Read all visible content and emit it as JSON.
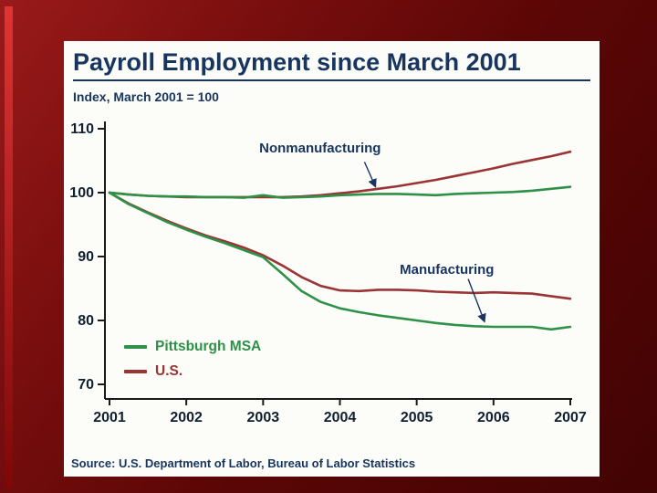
{
  "chart_data": {
    "type": "line",
    "title": "Payroll Employment since March 2001",
    "subtitle": "Index, March 2001 = 100",
    "source": "Source: U.S. Department of Labor, Bureau of Labor Statistics",
    "xlim": [
      2001,
      2007
    ],
    "ylim": [
      70,
      110
    ],
    "xticks": [
      2001,
      2002,
      2003,
      2004,
      2005,
      2006,
      2007
    ],
    "yticks": [
      110,
      100,
      90,
      80,
      70
    ],
    "grid": false,
    "legend_position": "inside-lower-left",
    "axis_color": "#1a1a1a",
    "tick_label_color": "#102030",
    "annotation_color": "#17355e",
    "x": [
      2001,
      2001.25,
      2001.5,
      2001.75,
      2002,
      2002.25,
      2002.5,
      2002.75,
      2003,
      2003.25,
      2003.5,
      2003.75,
      2004,
      2004.25,
      2004.5,
      2004.75,
      2005,
      2005.25,
      2005.5,
      2005.75,
      2006,
      2006.25,
      2006.5,
      2006.75,
      2007
    ],
    "series": [
      {
        "name": "U.S. Nonmanufacturing",
        "region": "U.S.",
        "group": "Nonmanufacturing",
        "color": "#9b3434",
        "values": [
          100,
          99.7,
          99.5,
          99.4,
          99.3,
          99.3,
          99.3,
          99.3,
          99.3,
          99.3,
          99.4,
          99.6,
          99.9,
          100.2,
          100.6,
          101.0,
          101.5,
          102.0,
          102.6,
          103.2,
          103.8,
          104.5,
          105.1,
          105.7,
          106.4
        ]
      },
      {
        "name": "U.S. Manufacturing",
        "region": "U.S.",
        "group": "Manufacturing",
        "color": "#9b3434",
        "values": [
          100,
          98.3,
          96.9,
          95.6,
          94.4,
          93.3,
          92.4,
          91.4,
          90.2,
          88.6,
          86.8,
          85.4,
          84.7,
          84.6,
          84.8,
          84.8,
          84.7,
          84.5,
          84.4,
          84.3,
          84.4,
          84.3,
          84.2,
          83.8,
          83.4
        ]
      },
      {
        "name": "Pittsburgh MSA Nonmanufacturing",
        "region": "Pittsburgh MSA",
        "group": "Nonmanufacturing",
        "color": "#2e9148",
        "values": [
          100,
          99.7,
          99.5,
          99.4,
          99.4,
          99.3,
          99.3,
          99.2,
          99.6,
          99.2,
          99.3,
          99.4,
          99.6,
          99.7,
          99.8,
          99.8,
          99.7,
          99.6,
          99.8,
          99.9,
          100.0,
          100.1,
          100.3,
          100.6,
          100.9
        ]
      },
      {
        "name": "Pittsburgh MSA Manufacturing",
        "region": "Pittsburgh MSA",
        "group": "Manufacturing",
        "color": "#2e9148",
        "values": [
          100,
          98.2,
          96.8,
          95.4,
          94.2,
          93.1,
          92.1,
          91.0,
          89.9,
          87.3,
          84.6,
          82.9,
          81.9,
          81.3,
          80.8,
          80.4,
          80.0,
          79.6,
          79.3,
          79.1,
          79.0,
          79.0,
          79.0,
          78.6,
          79.0
        ]
      }
    ],
    "legend": [
      {
        "label": "Pittsburgh MSA",
        "color": "#2e9148"
      },
      {
        "label": "U.S.",
        "color": "#9b3434"
      }
    ],
    "annotations": [
      {
        "text": "Nonmanufacturing",
        "x": 2002.95,
        "y": 106.9,
        "arrow": {
          "x1": 2004.32,
          "y1": 104.8,
          "x2": 2004.46,
          "y2": 101.0
        }
      },
      {
        "text": "Manufacturing",
        "x": 2004.78,
        "y": 87.9,
        "arrow": {
          "x1": 2005.67,
          "y1": 86.5,
          "x2": 2005.88,
          "y2": 79.9
        }
      }
    ]
  }
}
